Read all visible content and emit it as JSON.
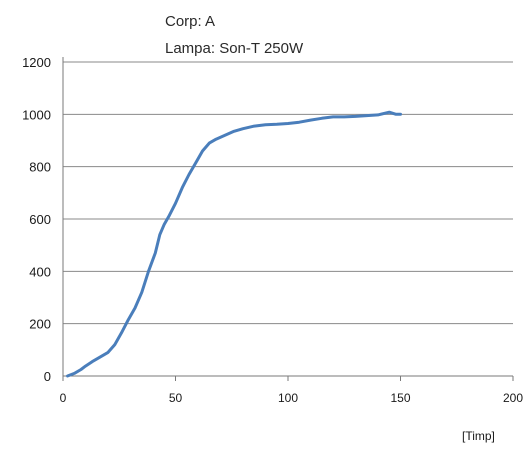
{
  "chart_data": {
    "type": "line",
    "annotations": [
      "Corp: A",
      "Lampa: Son-T 250W"
    ],
    "xlabel": "[Timp]",
    "ylabel": "",
    "xlim": [
      0,
      200
    ],
    "ylim": [
      0,
      1200
    ],
    "x_ticks": [
      "0",
      "50",
      "100",
      "150",
      "200"
    ],
    "y_ticks": [
      "0",
      "200",
      "400",
      "600",
      "800",
      "1000",
      "1200"
    ],
    "grid": "horizontal",
    "series_color": "#4a7ebb",
    "series": [
      {
        "x": [
          2,
          5,
          8,
          10,
          13,
          16,
          20,
          23,
          26,
          29,
          32,
          35,
          38,
          41,
          43,
          45,
          47,
          50,
          53,
          56,
          59,
          62,
          65,
          68,
          72,
          76,
          80,
          85,
          90,
          95,
          100,
          105,
          110,
          115,
          120,
          125,
          130,
          135,
          140,
          145,
          148,
          150
        ],
        "y": [
          0,
          10,
          25,
          38,
          55,
          70,
          90,
          120,
          165,
          215,
          260,
          320,
          400,
          470,
          540,
          580,
          610,
          660,
          720,
          770,
          815,
          860,
          890,
          905,
          920,
          935,
          945,
          955,
          960,
          962,
          965,
          970,
          978,
          985,
          990,
          990,
          992,
          995,
          998,
          1008,
          1000,
          1000
        ]
      }
    ]
  }
}
